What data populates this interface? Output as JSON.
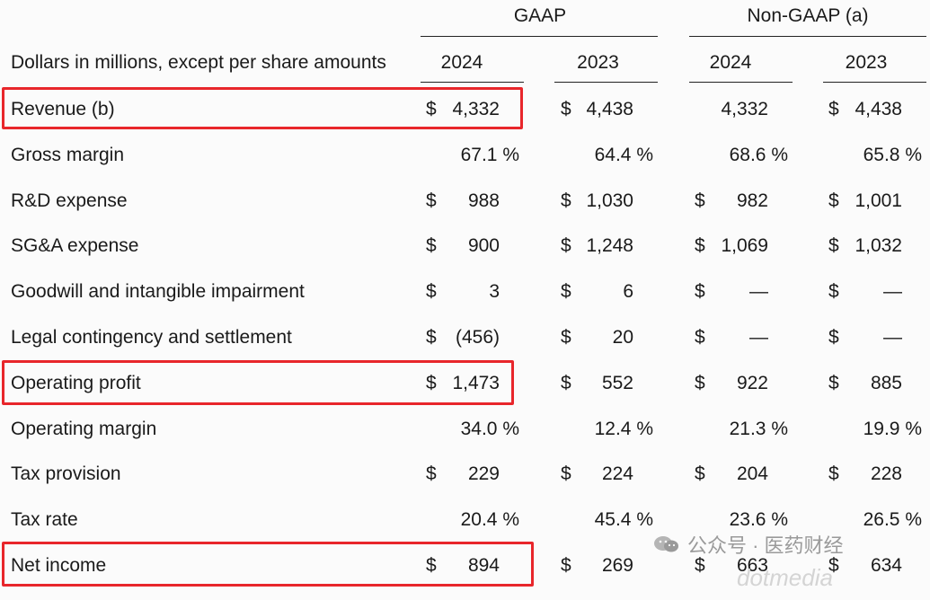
{
  "header": {
    "gaap": "GAAP",
    "non_gaap": "Non-GAAP (a)",
    "description": "Dollars in millions, except per share amounts",
    "years": [
      "2024",
      "2023",
      "2024",
      "2023"
    ]
  },
  "rows": [
    {
      "label": "Revenue (b)",
      "cells": [
        [
          "$",
          "4,332"
        ],
        [
          "$",
          "4,438"
        ],
        [
          "",
          "4,332"
        ],
        [
          "$",
          "4,438"
        ]
      ]
    },
    {
      "label": "Gross margin",
      "cells": [
        [
          "",
          "67.1 %"
        ],
        [
          "",
          "64.4 %"
        ],
        [
          "",
          "68.6 %"
        ],
        [
          "",
          "65.8 %"
        ]
      ]
    },
    {
      "label": "R&D expense",
      "cells": [
        [
          "$",
          "988"
        ],
        [
          "$",
          "1,030"
        ],
        [
          "$",
          "982"
        ],
        [
          "$",
          "1,001"
        ]
      ]
    },
    {
      "label": "SG&A expense",
      "cells": [
        [
          "$",
          "900"
        ],
        [
          "$",
          "1,248"
        ],
        [
          "$",
          "1,069"
        ],
        [
          "$",
          "1,032"
        ]
      ]
    },
    {
      "label": "Goodwill and intangible impairment",
      "cells": [
        [
          "$",
          "3"
        ],
        [
          "$",
          "6"
        ],
        [
          "$",
          "—"
        ],
        [
          "$",
          "—"
        ]
      ]
    },
    {
      "label": "Legal contingency and settlement",
      "cells": [
        [
          "$",
          "(456)"
        ],
        [
          "$",
          "20"
        ],
        [
          "$",
          "—"
        ],
        [
          "$",
          "—"
        ]
      ]
    },
    {
      "label": "Operating profit",
      "cells": [
        [
          "$",
          "1,473"
        ],
        [
          "$",
          "552"
        ],
        [
          "$",
          "922"
        ],
        [
          "$",
          "885"
        ]
      ]
    },
    {
      "label": "Operating margin",
      "cells": [
        [
          "",
          "34.0 %"
        ],
        [
          "",
          "12.4 %"
        ],
        [
          "",
          "21.3 %"
        ],
        [
          "",
          "19.9 %"
        ]
      ]
    },
    {
      "label": "Tax provision",
      "cells": [
        [
          "$",
          "229"
        ],
        [
          "$",
          "224"
        ],
        [
          "$",
          "204"
        ],
        [
          "$",
          "228"
        ]
      ]
    },
    {
      "label": "Tax rate",
      "cells": [
        [
          "",
          "20.4 %"
        ],
        [
          "",
          "45.4 %"
        ],
        [
          "",
          "23.6 %"
        ],
        [
          "",
          "26.5 %"
        ]
      ]
    },
    {
      "label": "Net income",
      "cells": [
        [
          "$",
          "894"
        ],
        [
          "$",
          "269"
        ],
        [
          "$",
          "663"
        ],
        [
          "$",
          "634"
        ]
      ]
    }
  ],
  "highlights": {
    "color": "#e8262b",
    "rows": [
      "Revenue (b)",
      "Operating profit",
      "Net income"
    ]
  },
  "watermark": {
    "text": "公众号 · 医药财经",
    "faint": "dotmedia"
  }
}
